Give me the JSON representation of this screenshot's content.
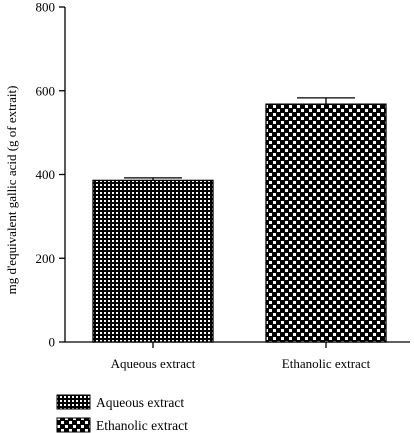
{
  "chart_data": {
    "type": "bar",
    "categories": [
      "Aqueous extract",
      "Ethanolic extract"
    ],
    "values": [
      386,
      568
    ],
    "error": [
      6,
      15
    ],
    "ylabel": "mg d'equivalent gallic acid (g of extrait)",
    "xlabel": "",
    "ylim": [
      0,
      800
    ],
    "yticks": [
      0,
      200,
      400,
      600,
      800
    ],
    "legend": {
      "placement": "bottom-left",
      "entries": [
        "Aqueous extract",
        "Ethanolic extract"
      ]
    },
    "grid": false,
    "colors": {
      "ink": "#000000",
      "fill": "#ffffff"
    }
  }
}
